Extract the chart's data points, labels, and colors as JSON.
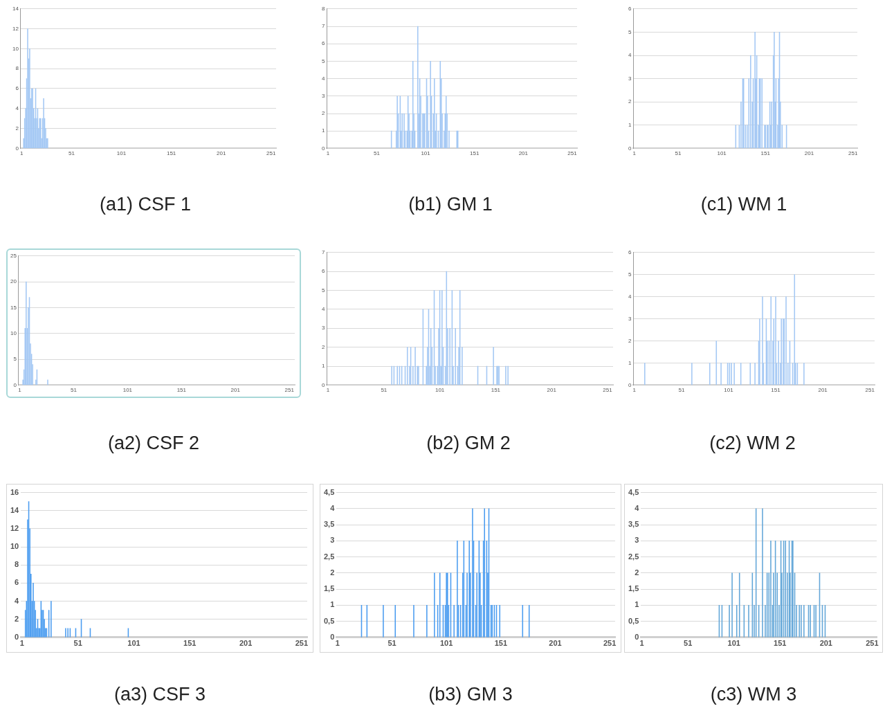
{
  "chart_data": [
    {
      "type": "bar",
      "title": "(a1) CSF 1",
      "color": "#a4c8f4",
      "grid": "y",
      "xlim": [
        0,
        256
      ],
      "xticks": [
        1,
        51,
        101,
        151,
        201,
        251
      ],
      "ylim": [
        0,
        14
      ],
      "yticks": [
        0,
        2,
        4,
        6,
        8,
        10,
        12,
        14
      ],
      "x": [
        3,
        4,
        5,
        6,
        7,
        8,
        9,
        10,
        11,
        12,
        13,
        14,
        15,
        16,
        17,
        18,
        19,
        20,
        21,
        22,
        23,
        24,
        25,
        26,
        27
      ],
      "values": [
        1,
        3,
        4,
        7,
        12,
        9,
        10,
        5,
        6,
        6,
        4,
        3,
        6,
        3,
        4,
        2,
        3,
        3,
        1,
        3,
        5,
        3,
        2,
        1,
        1
      ]
    },
    {
      "type": "bar",
      "title": "(b1) GM 1",
      "color": "#a4c8f4",
      "grid": "y",
      "xlim": [
        0,
        256
      ],
      "xticks": [
        1,
        51,
        101,
        151,
        201,
        251
      ],
      "ylim": [
        0,
        8
      ],
      "yticks": [
        0,
        1,
        2,
        3,
        4,
        5,
        6,
        7,
        8
      ],
      "x": [
        66,
        71,
        72,
        73,
        75,
        76,
        77,
        79,
        80,
        82,
        83,
        84,
        85,
        87,
        88,
        89,
        90,
        93,
        94,
        95,
        96,
        98,
        99,
        100,
        102,
        103,
        104,
        106,
        107,
        109,
        110,
        111,
        112,
        114,
        116,
        117,
        118,
        120,
        121,
        122,
        123,
        125,
        133,
        134
      ],
      "values": [
        1,
        1,
        3,
        2,
        3,
        1,
        2,
        2,
        1,
        1,
        3,
        2,
        1,
        1,
        5,
        2,
        1,
        7,
        2,
        4,
        3,
        2,
        2,
        2,
        4,
        3,
        1,
        5,
        3,
        2,
        4,
        1,
        2,
        1,
        5,
        4,
        2,
        1,
        2,
        3,
        2,
        1,
        1,
        1
      ]
    },
    {
      "type": "bar",
      "title": "(c1) WM 1",
      "color": "#a4c8f4",
      "grid": "y",
      "xlim": [
        0,
        256
      ],
      "xticks": [
        1,
        51,
        101,
        151,
        201,
        251
      ],
      "ylim": [
        0,
        6
      ],
      "yticks": [
        0,
        1,
        2,
        3,
        4,
        5,
        6
      ],
      "x": [
        117,
        121,
        123,
        125,
        126,
        128,
        130,
        132,
        134,
        136,
        137,
        139,
        140,
        141,
        143,
        144,
        145,
        147,
        150,
        151,
        153,
        154,
        156,
        157,
        158,
        160,
        161,
        162,
        163,
        165,
        166,
        167,
        168,
        170,
        175
      ],
      "values": [
        1,
        1,
        2,
        3,
        3,
        1,
        1,
        3,
        4,
        2,
        3,
        5,
        3,
        4,
        1,
        3,
        3,
        3,
        1,
        1,
        1,
        1,
        2,
        1,
        2,
        4,
        5,
        2,
        3,
        1,
        3,
        5,
        2,
        1,
        1
      ]
    },
    {
      "type": "bar",
      "title": "(a2) CSF 2",
      "color": "#a4c8f4",
      "grid": "y",
      "xlim": [
        0,
        256
      ],
      "xticks": [
        1,
        51,
        101,
        151,
        201,
        251
      ],
      "ylim": [
        0,
        25
      ],
      "yticks": [
        0,
        5,
        10,
        15,
        20,
        25
      ],
      "x": [
        4,
        5,
        6,
        7,
        8,
        9,
        10,
        11,
        12,
        13,
        16,
        17,
        27
      ],
      "values": [
        1,
        3,
        11,
        20,
        11,
        15,
        17,
        8,
        6,
        4,
        1,
        3,
        1
      ]
    },
    {
      "type": "bar",
      "title": "(b2) GM 2",
      "color": "#a4c8f4",
      "grid": "y",
      "xlim": [
        0,
        256
      ],
      "xticks": [
        1,
        51,
        101,
        151,
        201,
        251
      ],
      "ylim": [
        0,
        7
      ],
      "yticks": [
        0,
        1,
        2,
        3,
        4,
        5,
        6,
        7
      ],
      "x": [
        58,
        60,
        63,
        65,
        67,
        70,
        72,
        74,
        75,
        77,
        79,
        81,
        82,
        86,
        89,
        90,
        91,
        92,
        93,
        94,
        96,
        97,
        99,
        100,
        101,
        102,
        103,
        104,
        106,
        107,
        108,
        110,
        112,
        113,
        115,
        117,
        118,
        119,
        121,
        135,
        143,
        149,
        152,
        153,
        154,
        160,
        162
      ],
      "values": [
        1,
        1,
        1,
        1,
        1,
        1,
        2,
        1,
        2,
        1,
        2,
        1,
        1,
        4,
        1,
        2,
        4,
        1,
        3,
        2,
        5,
        1,
        1,
        3,
        5,
        1,
        5,
        2,
        1,
        6,
        3,
        3,
        5,
        1,
        3,
        1,
        2,
        5,
        2,
        1,
        1,
        2,
        1,
        1,
        1,
        1,
        1
      ]
    },
    {
      "type": "bar",
      "title": "(c2) WM 2",
      "color": "#a4c8f4",
      "grid": "y",
      "xlim": [
        0,
        256
      ],
      "xticks": [
        1,
        51,
        101,
        151,
        201,
        251
      ],
      "ylim": [
        0,
        6
      ],
      "yticks": [
        0,
        1,
        2,
        3,
        4,
        5,
        6
      ],
      "x": [
        12,
        62,
        81,
        88,
        93,
        100,
        102,
        104,
        107,
        114,
        124,
        129,
        133,
        134,
        137,
        138,
        141,
        142,
        144,
        146,
        148,
        149,
        151,
        152,
        154,
        156,
        157,
        159,
        160,
        162,
        164,
        166,
        169,
        171,
        172,
        174,
        181
      ],
      "values": [
        1,
        1,
        1,
        2,
        1,
        1,
        1,
        1,
        1,
        1,
        1,
        1,
        2,
        3,
        4,
        1,
        3,
        2,
        2,
        4,
        2,
        3,
        4,
        1,
        2,
        1,
        3,
        3,
        3,
        4,
        1,
        2,
        1,
        5,
        1,
        1,
        1
      ]
    },
    {
      "type": "bar",
      "title": "(a3) CSF 3",
      "color": "#4a9cf0",
      "grid": "y",
      "xlim": [
        0,
        256
      ],
      "xticks": [
        1,
        51,
        101,
        151,
        201,
        251
      ],
      "ylim": [
        0,
        16
      ],
      "yticks": [
        0,
        2,
        4,
        6,
        8,
        10,
        12,
        14,
        16
      ],
      "x": [
        4,
        5,
        6,
        7,
        8,
        9,
        10,
        11,
        12,
        13,
        14,
        15,
        16,
        17,
        18,
        19,
        20,
        21,
        22,
        23,
        25,
        27,
        40,
        42,
        44,
        49,
        54,
        62,
        96
      ],
      "values": [
        3,
        4,
        13,
        15,
        12,
        7,
        4,
        6,
        4,
        3,
        1,
        2,
        1,
        1,
        4,
        3,
        3,
        2,
        1,
        1,
        3,
        4,
        1,
        1,
        1,
        1,
        2,
        1,
        1
      ]
    },
    {
      "type": "bar",
      "title": "(b3) GM 3",
      "color": "#4a9cf0",
      "grid": "y",
      "xlim": [
        0,
        256
      ],
      "xticks": [
        1,
        51,
        101,
        151,
        201,
        251
      ],
      "ylim": [
        0,
        4.5
      ],
      "yticks": [
        0,
        {
          "value": 0.5,
          "label": "0,5"
        },
        1,
        {
          "value": 1.5,
          "label": "1,5"
        },
        2,
        {
          "value": 2.5,
          "label": "2,5"
        },
        3,
        {
          "value": 3.5,
          "label": "3,5"
        },
        4,
        {
          "value": 4.5,
          "label": "4,5"
        }
      ],
      "x": [
        23,
        28,
        43,
        54,
        71,
        83,
        90,
        93,
        95,
        98,
        100,
        101,
        102,
        103,
        105,
        108,
        111,
        112,
        114,
        116,
        117,
        119,
        120,
        122,
        123,
        125,
        126,
        128,
        129,
        131,
        132,
        133,
        135,
        136,
        138,
        139,
        140,
        142,
        143,
        145,
        147,
        150,
        171,
        177
      ],
      "values": [
        1,
        1,
        1,
        1,
        1,
        1,
        2,
        1,
        2,
        1,
        1,
        2,
        2,
        1,
        2,
        1,
        3,
        1,
        1,
        2,
        3,
        1,
        2,
        3,
        2,
        4,
        3,
        1,
        2,
        3,
        2,
        1,
        3,
        4,
        3,
        2,
        4,
        1,
        1,
        1,
        1,
        1,
        1,
        1
      ]
    },
    {
      "type": "bar",
      "title": "(c3) WM 3",
      "color": "#62a6d8",
      "grid": "y",
      "xlim": [
        0,
        256
      ],
      "xticks": [
        1,
        51,
        101,
        151,
        201,
        251
      ],
      "ylim": [
        0,
        4.5
      ],
      "yticks": [
        0,
        {
          "value": 0.5,
          "label": "0,5"
        },
        1,
        {
          "value": 1.5,
          "label": "1,5"
        },
        2,
        {
          "value": 2.5,
          "label": "2,5"
        },
        3,
        {
          "value": 3.5,
          "label": "3,5"
        },
        4,
        {
          "value": 4.5,
          "label": "4,5"
        }
      ],
      "x": [
        85,
        88,
        96,
        99,
        104,
        107,
        112,
        117,
        121,
        123,
        125,
        128,
        132,
        135,
        137,
        139,
        141,
        143,
        144,
        146,
        148,
        150,
        152,
        153,
        155,
        157,
        159,
        161,
        162,
        164,
        165,
        167,
        169,
        172,
        174,
        177,
        182,
        184,
        188,
        190,
        194,
        197,
        200
      ],
      "values": [
        1,
        1,
        1,
        2,
        1,
        2,
        1,
        1,
        2,
        1,
        4,
        1,
        4,
        1,
        2,
        2,
        3,
        1,
        2,
        3,
        2,
        1,
        3,
        2,
        3,
        3,
        2,
        3,
        2,
        3,
        3,
        2,
        1,
        1,
        1,
        1,
        1,
        1,
        1,
        1,
        2,
        1,
        1
      ]
    }
  ]
}
